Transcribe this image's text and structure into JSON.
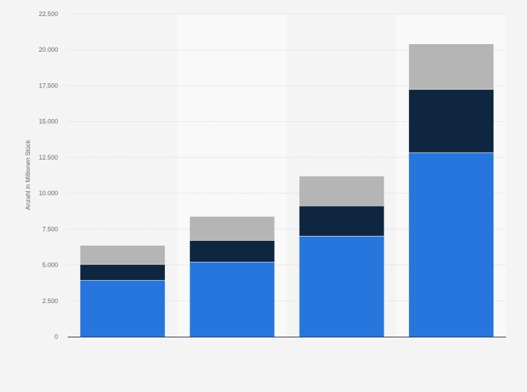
{
  "chart_data": {
    "type": "bar",
    "stacked": true,
    "title": "",
    "xlabel": "",
    "ylabel": "Anzahl in Millionen Stück",
    "ylim": [
      0,
      22500
    ],
    "yticks": [
      0,
      2500,
      5000,
      7500,
      10000,
      12500,
      15000,
      17500,
      20000,
      22500
    ],
    "ytick_labels": [
      "0",
      "2.500",
      "5.000",
      "7.500",
      "10.000",
      "12.500",
      "15.000",
      "17.500",
      "20.000",
      "22.500"
    ],
    "categories": [
      "",
      "",
      "",
      ""
    ],
    "series": [
      {
        "values": [
          3950,
          5220,
          7030,
          12850
        ],
        "color": "#2776dd"
      },
      {
        "values": [
          1100,
          1500,
          2100,
          4400
        ],
        "color": "#0f2640"
      },
      {
        "values": [
          1300,
          1650,
          2050,
          3150
        ],
        "color": "#b5b5b5"
      }
    ],
    "grid": true,
    "legend": "none"
  }
}
